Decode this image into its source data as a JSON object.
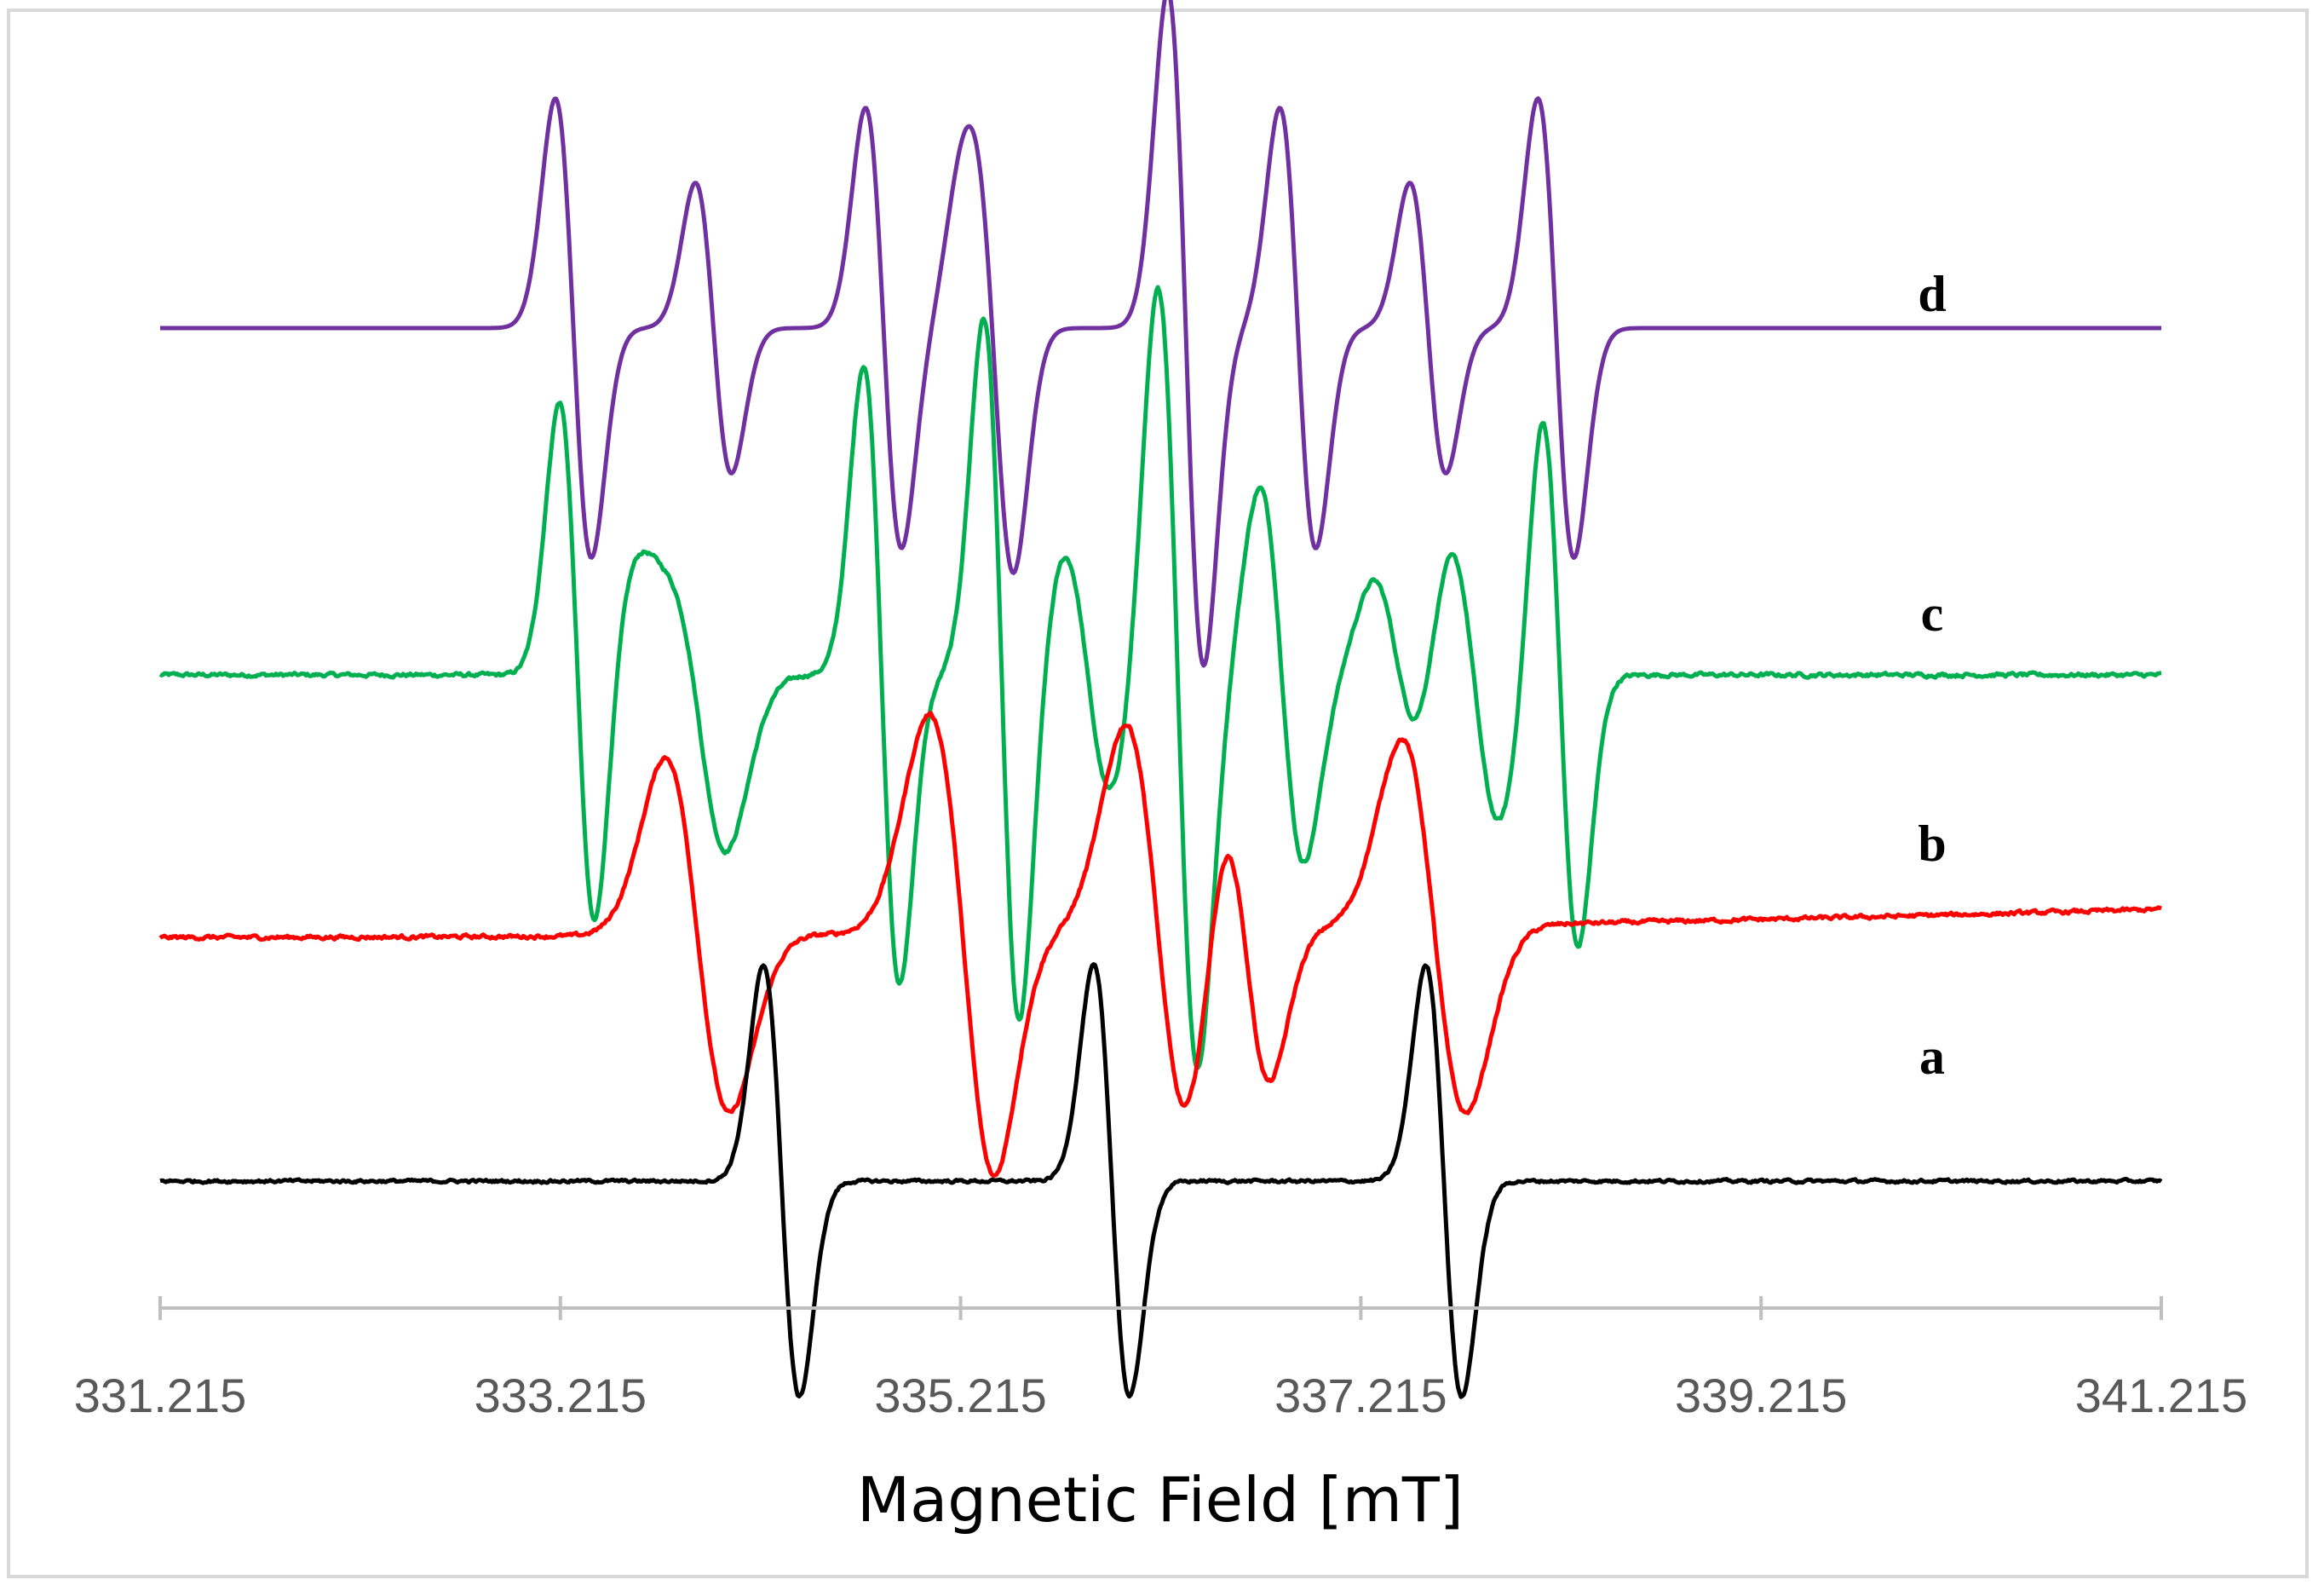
{
  "chart_data": {
    "type": "line",
    "title": "",
    "xlabel": "Magnetic Field [mT]",
    "ylabel": "",
    "xlim": [
      331.215,
      341.215
    ],
    "x_ticks": [
      "331.215",
      "333.215",
      "335.215",
      "337.215",
      "339.215",
      "341.215"
    ],
    "legend": "inline labels at right",
    "grid": false,
    "series": [
      {
        "name": "d",
        "color": "#7030a0",
        "offset": 0.87,
        "noise": 0,
        "lines": [
          {
            "center": 333.28,
            "width": 0.09,
            "amp": 0.245
          },
          {
            "center": 333.98,
            "width": 0.09,
            "amp": 0.155
          },
          {
            "center": 334.83,
            "width": 0.09,
            "amp": 0.235
          },
          {
            "center": 335.28,
            "width": 0.09,
            "amp": 0.11
          },
          {
            "center": 335.4,
            "width": 0.09,
            "amp": 0.23
          },
          {
            "center": 336.34,
            "width": 0.09,
            "amp": 0.36
          },
          {
            "center": 336.9,
            "width": 0.09,
            "amp": 0.235
          },
          {
            "center": 337.55,
            "width": 0.09,
            "amp": 0.155
          },
          {
            "center": 338.19,
            "width": 0.09,
            "amp": 0.245
          }
        ]
      },
      {
        "name": "c",
        "color": "#00b050",
        "offset": 0.5,
        "noise": 0.004,
        "lines": [
          {
            "center": 333.3,
            "width": 0.09,
            "amp": 0.29
          },
          {
            "center": 333.68,
            "width": 0.13,
            "amp": 0.09
          },
          {
            "center": 333.91,
            "width": 0.14,
            "amp": 0.18
          },
          {
            "center": 334.82,
            "width": 0.09,
            "amp": 0.33
          },
          {
            "center": 335.42,
            "width": 0.09,
            "amp": 0.38
          },
          {
            "center": 335.85,
            "width": 0.12,
            "amp": 0.13
          },
          {
            "center": 336.3,
            "width": 0.1,
            "amp": 0.42
          },
          {
            "center": 336.82,
            "width": 0.11,
            "amp": 0.2
          },
          {
            "center": 337.4,
            "width": 0.12,
            "amp": 0.1
          },
          {
            "center": 337.78,
            "width": 0.13,
            "amp": 0.16
          },
          {
            "center": 338.21,
            "width": 0.09,
            "amp": 0.29
          }
        ]
      },
      {
        "name": "b",
        "color": "#ff0000",
        "offset": 0.225,
        "noise": 0.004,
        "baseline_drift": [
          -0.005,
          0.025
        ],
        "lines": [
          {
            "center": 333.9,
            "width": 0.16,
            "amp": 0.19
          },
          {
            "center": 335.2,
            "width": 0.16,
            "amp": 0.21
          },
          {
            "center": 335.3,
            "width": 0.12,
            "amp": 0.06
          },
          {
            "center": 336.2,
            "width": 0.16,
            "amp": 0.22
          },
          {
            "center": 336.64,
            "width": 0.12,
            "amp": 0.16
          },
          {
            "center": 337.58,
            "width": 0.16,
            "amp": 0.2
          }
        ]
      },
      {
        "name": "a",
        "color": "#000000",
        "offset": -0.04,
        "noise": 0.003,
        "lines": [
          {
            "center": 334.32,
            "width": 0.09,
            "amp": 0.23
          },
          {
            "center": 335.97,
            "width": 0.09,
            "amp": 0.23
          },
          {
            "center": 337.63,
            "width": 0.09,
            "amp": 0.23
          }
        ]
      }
    ]
  }
}
